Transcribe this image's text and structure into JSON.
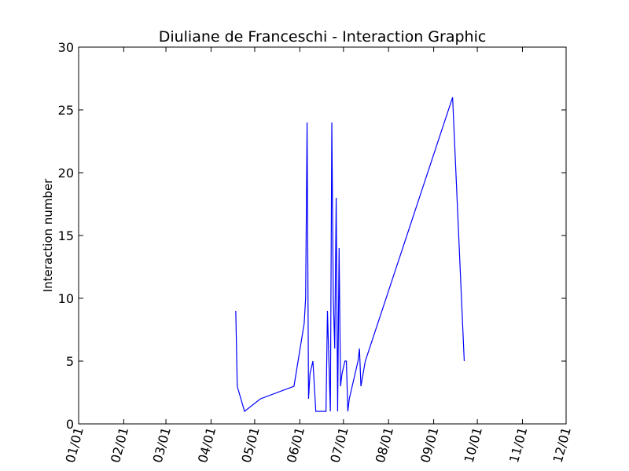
{
  "chart_data": {
    "type": "line",
    "title": "Diuliane de Franceschi - Interaction Graphic",
    "xlabel": "",
    "ylabel": "Interaction number",
    "xlim": [
      "01/01",
      "12/01"
    ],
    "ylim": [
      0,
      30
    ],
    "x_ticks": [
      "01/01",
      "02/01",
      "03/01",
      "04/01",
      "05/01",
      "06/01",
      "07/01",
      "08/01",
      "09/01",
      "10/01",
      "11/01",
      "12/01"
    ],
    "y_ticks": [
      0,
      5,
      10,
      15,
      20,
      25,
      30
    ],
    "grid": false,
    "series": [
      {
        "color": "#0000ff",
        "x": [
          "04/18",
          "04/19",
          "04/24",
          "05/05",
          "05/28",
          "06/04",
          "06/05",
          "06/06",
          "06/07",
          "06/08",
          "06/10",
          "06/12",
          "06/19",
          "06/20",
          "06/22",
          "06/23",
          "06/24",
          "06/25",
          "06/26",
          "06/27",
          "06/28",
          "06/29",
          "06/30",
          "07/02",
          "07/03",
          "07/04",
          "07/05",
          "07/11",
          "07/12",
          "07/13",
          "07/16",
          "09/14",
          "09/22"
        ],
        "y": [
          9,
          3,
          1,
          2,
          3,
          8,
          10,
          24,
          2,
          4,
          5,
          1,
          1,
          9,
          1,
          24,
          10,
          6,
          18,
          1,
          14,
          3,
          4,
          5,
          5,
          1,
          2,
          5,
          6,
          3,
          5,
          26,
          5
        ]
      }
    ]
  }
}
